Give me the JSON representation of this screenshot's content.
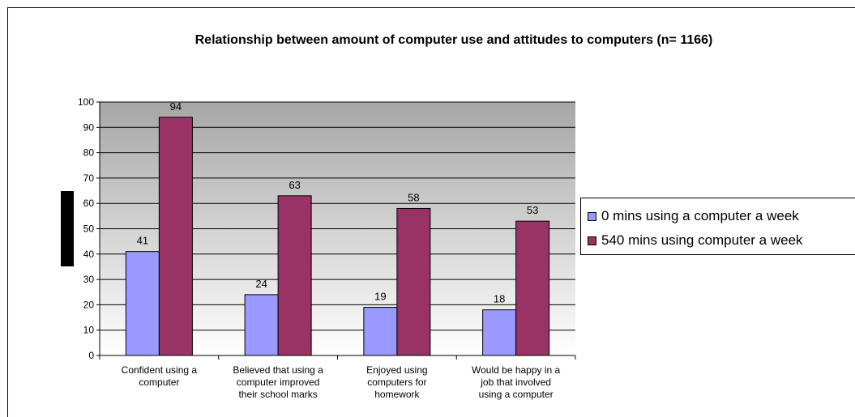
{
  "colors": {
    "series0": "#9999ff",
    "series1": "#993366",
    "plot_top": "#a6a6a6",
    "plot_bottom": "#ffffff"
  },
  "chart_data": {
    "type": "bar",
    "title": "Relationship between amount of computer use and attitudes to computers (n= 1166)",
    "categories": [
      [
        "Confident using a",
        "computer"
      ],
      [
        "Believed that using a",
        "computer improved",
        "their school marks"
      ],
      [
        "Enjoyed using",
        "computers for",
        "homework"
      ],
      [
        "Would be happy in a",
        "job that involved",
        "using a computer"
      ]
    ],
    "series": [
      {
        "name": "0 mins using a computer a week",
        "values": [
          41,
          24,
          19,
          18
        ]
      },
      {
        "name": "540 mins using computer a week",
        "values": [
          94,
          63,
          58,
          53
        ]
      }
    ],
    "ylim": [
      0,
      100
    ],
    "yticks": [
      0,
      10,
      20,
      30,
      40,
      50,
      60,
      70,
      80,
      90,
      100
    ],
    "xlabel": "",
    "ylabel": "",
    "grid": true,
    "legend_position": "right"
  }
}
